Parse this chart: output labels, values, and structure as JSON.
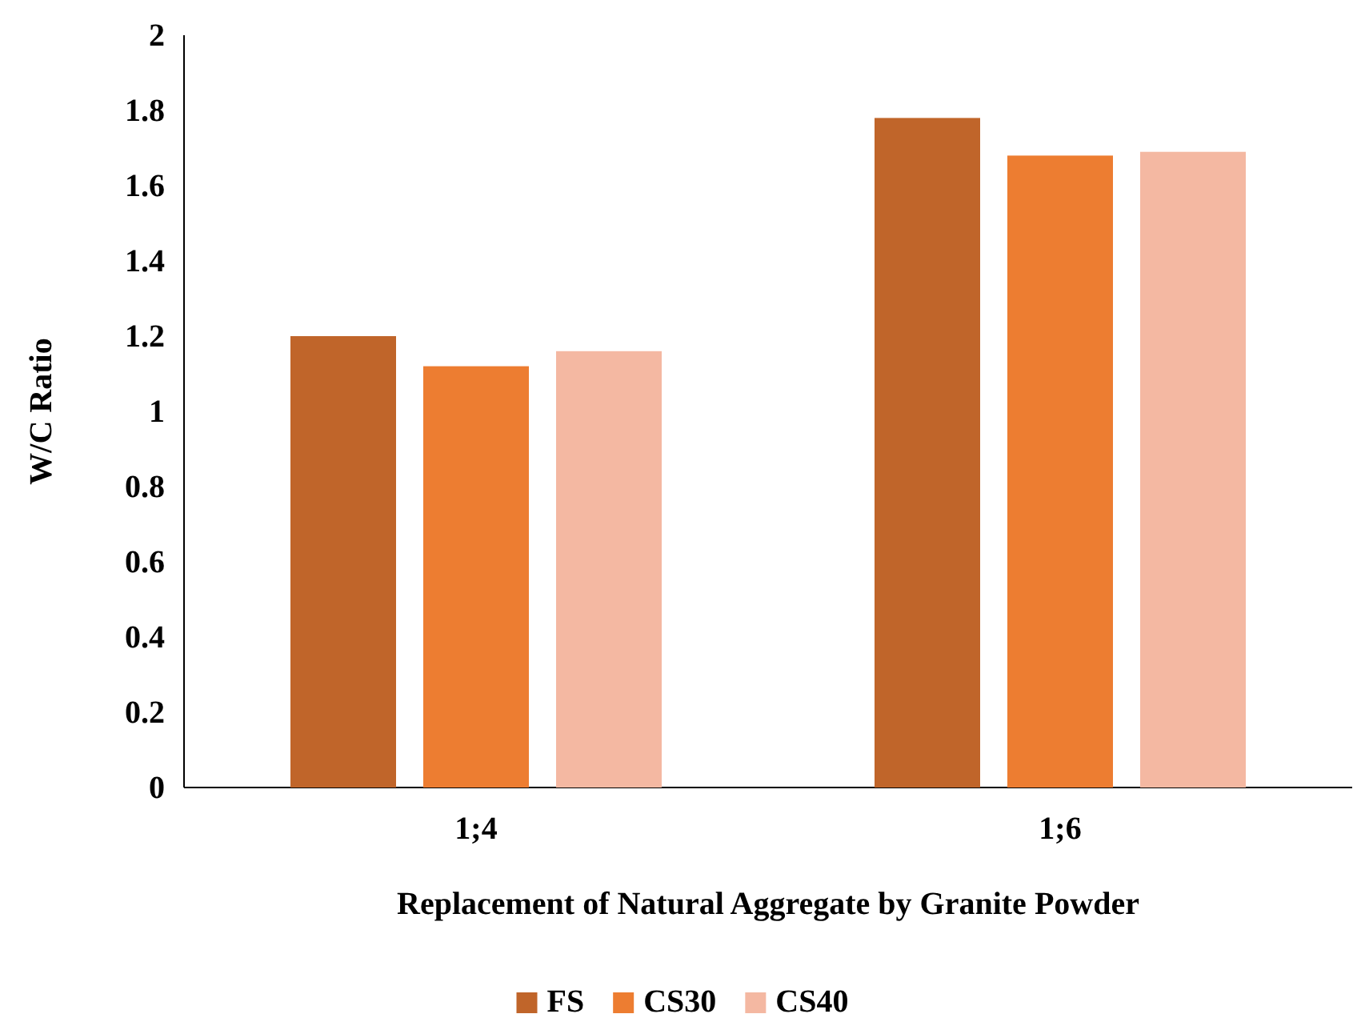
{
  "chart_data": {
    "type": "bar",
    "xlabel": "Replacement of Natural Aggregate by Granite Powder",
    "ylabel": "W/C Ratio",
    "categories": [
      "1;4",
      "1;6"
    ],
    "series": [
      {
        "name": "FS",
        "color": "#c0652a",
        "values": [
          1.2,
          1.78
        ]
      },
      {
        "name": "CS30",
        "color": "#ed7d31",
        "values": [
          1.12,
          1.68
        ]
      },
      {
        "name": "CS40",
        "color": "#f4b8a2",
        "values": [
          1.16,
          1.69
        ]
      }
    ],
    "ylim": [
      0,
      2
    ],
    "yticks": [
      0,
      0.2,
      0.4,
      0.6,
      0.8,
      1,
      1.2,
      1.4,
      1.6,
      1.8,
      2
    ],
    "grid": false,
    "legend": "bottom"
  }
}
